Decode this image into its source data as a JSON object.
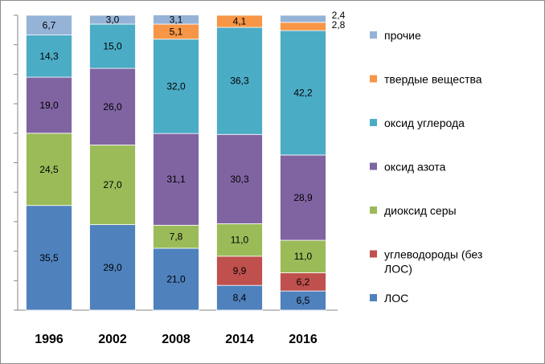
{
  "chart_data": {
    "type": "bar",
    "stacked": true,
    "categories": [
      "1996",
      "2002",
      "2008",
      "2014",
      "2016"
    ],
    "ylim": [
      0,
      100
    ],
    "grid": false,
    "legend_position": "right",
    "series": [
      {
        "name": "ЛОС",
        "color": "#4f81bd",
        "values": [
          35.5,
          29.0,
          21.0,
          8.4,
          6.5
        ],
        "labels": [
          "35,5",
          "29,0",
          "21,0",
          "8,4",
          "6,5"
        ]
      },
      {
        "name": "углеводороды (без ЛОС)",
        "color": "#c0504d",
        "values": [
          0,
          0,
          0,
          9.9,
          6.2
        ],
        "labels": [
          "",
          "",
          "",
          "9,9",
          "6,2"
        ]
      },
      {
        "name": "диоксид серы",
        "color": "#9bbb59",
        "values": [
          24.5,
          27.0,
          7.8,
          11.0,
          11.0
        ],
        "labels": [
          "24,5",
          "27,0",
          "7,8",
          "11,0",
          "11,0"
        ]
      },
      {
        "name": "оксид азота",
        "color": "#8064a2",
        "values": [
          19.0,
          26.0,
          31.1,
          30.3,
          28.9
        ],
        "labels": [
          "19,0",
          "26,0",
          "31,1",
          "30,3",
          "28,9"
        ]
      },
      {
        "name": "оксид углерода",
        "color": "#4bacc6",
        "values": [
          14.3,
          15.0,
          32.0,
          36.3,
          42.2
        ],
        "labels": [
          "14,3",
          "15,0",
          "32,0",
          "36,3",
          "42,2"
        ]
      },
      {
        "name": "твердые вещества",
        "color": "#f79646",
        "values": [
          0,
          0,
          5.1,
          4.1,
          2.8
        ],
        "labels": [
          "",
          "",
          "5,1",
          "4,1",
          "2,8"
        ]
      },
      {
        "name": "прочие",
        "color": "#95b3d7",
        "values": [
          6.7,
          3.0,
          3.1,
          0,
          2.4
        ],
        "labels": [
          "6,7",
          "3,0",
          "3,1",
          "",
          "2,4"
        ]
      }
    ]
  }
}
